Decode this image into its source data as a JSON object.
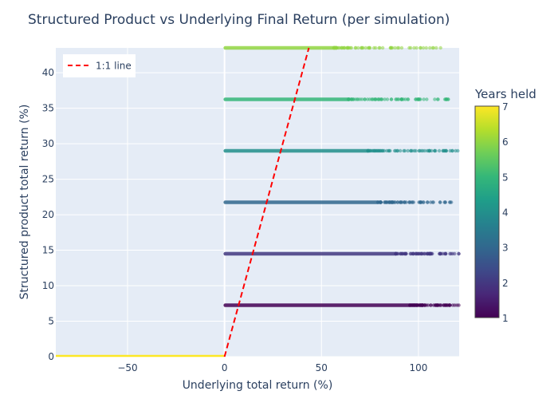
{
  "chart_data": {
    "type": "scatter",
    "title": "Structured Product vs Underlying Final Return (per simulation)",
    "xlabel": "Underlying total return (%)",
    "ylabel": "Structured product total return (%)",
    "xlim": [
      -87,
      121
    ],
    "ylim": [
      0,
      43.5
    ],
    "xticks": [
      -50,
      0,
      50,
      100
    ],
    "yticks": [
      0,
      5,
      10,
      15,
      20,
      25,
      30,
      35,
      40
    ],
    "grid": true,
    "legend": {
      "position": "top-left",
      "entries": [
        "1:1 line"
      ]
    },
    "colorbar": {
      "title": "Years held",
      "min": 1,
      "max": 7,
      "ticks": [
        1,
        2,
        3,
        4,
        5,
        6,
        7
      ],
      "colorscale": "Viridis"
    },
    "series": [
      {
        "years_held": 1,
        "y": 7.25,
        "x_range": [
          0,
          121
        ],
        "note": ""
      },
      {
        "years_held": 2,
        "y": 14.5,
        "x_range": [
          0,
          121
        ]
      },
      {
        "years_held": 3,
        "y": 21.75,
        "x_range": [
          0,
          118
        ]
      },
      {
        "years_held": 4,
        "y": 29.0,
        "x_range": [
          0,
          121
        ]
      },
      {
        "years_held": 5,
        "y": 36.25,
        "x_range": [
          0,
          116
        ]
      },
      {
        "years_held": 6,
        "y": 43.5,
        "x_range": [
          0,
          115
        ]
      },
      {
        "years_held": 7,
        "y": 0,
        "x_range": [
          -87,
          0
        ]
      }
    ],
    "reference_line": {
      "name": "1:1 line",
      "color": "#ff0000",
      "style": "dashed",
      "points": [
        [
          0,
          0
        ],
        [
          43.5,
          43.5
        ]
      ]
    }
  }
}
